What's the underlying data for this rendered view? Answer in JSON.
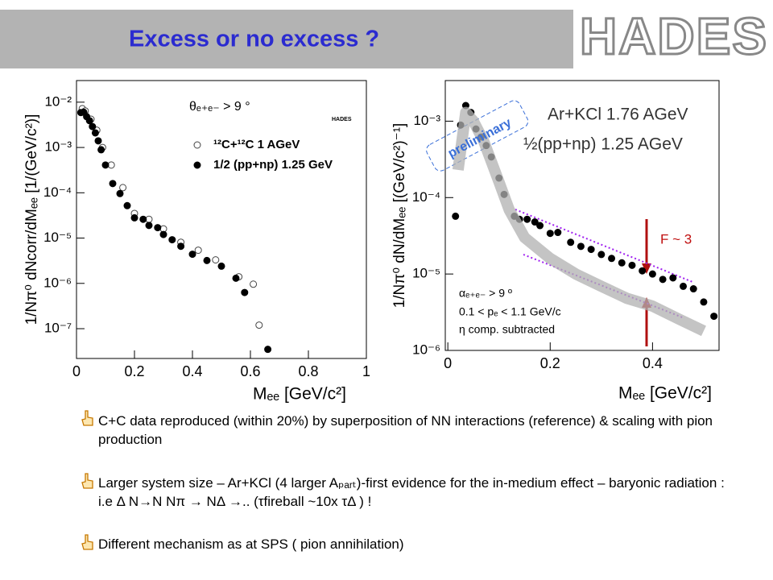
{
  "header": {
    "title": "Excess or no excess ?",
    "logo": "HADES"
  },
  "chart_data": [
    {
      "type": "scatter",
      "xlabel": "Mₑₑ [GeV/c²]",
      "ylabel": "1/Nπ⁰ dNcorr/dMₑₑ [1/(GeV/c²)]",
      "log_y": true,
      "xlim": [
        0,
        1
      ],
      "ylim": [
        2.2e-08,
        0.03
      ],
      "xticks": [
        0,
        0.2,
        0.4,
        0.6,
        0.8,
        1
      ],
      "yticks": [
        {
          "value": 1e-07,
          "label": "10⁻⁷"
        },
        {
          "value": 1e-06,
          "label": "10⁻⁶"
        },
        {
          "value": 1e-05,
          "label": "10⁻⁵"
        },
        {
          "value": 0.0001,
          "label": "10⁻⁴"
        },
        {
          "value": 0.001,
          "label": "10⁻³"
        },
        {
          "value": 0.01,
          "label": "10⁻²"
        }
      ],
      "annotations": [
        "θₑ₊ₑ₋ > 9 °",
        "HADES"
      ],
      "series": [
        {
          "name": "¹²C+¹²C 1 AGeV",
          "color": "#444444",
          "marker": "open-circle",
          "x": [
            0.02,
            0.03,
            0.05,
            0.07,
            0.09,
            0.12,
            0.16,
            0.2,
            0.25,
            0.3,
            0.36,
            0.42,
            0.48,
            0.56,
            0.61,
            0.63
          ],
          "values": [
            0.0072,
            0.0064,
            0.0042,
            0.0024,
            0.001,
            0.00041,
            0.00013,
            3.5e-05,
            2.6e-05,
            1.6e-05,
            8.1e-06,
            5.4e-06,
            3.3e-06,
            1.4e-06,
            9.6e-07,
            1.2e-07
          ]
        },
        {
          "name": "1/2 (pp+np) 1.25 GeV",
          "color": "#000000",
          "marker": "filled-circle",
          "x": [
            0.015,
            0.025,
            0.035,
            0.045,
            0.055,
            0.065,
            0.075,
            0.085,
            0.1,
            0.125,
            0.15,
            0.175,
            0.2,
            0.23,
            0.25,
            0.28,
            0.3,
            0.33,
            0.36,
            0.4,
            0.45,
            0.5,
            0.55,
            0.58,
            0.66
          ],
          "values": [
            0.0059,
            0.006,
            0.0048,
            0.0039,
            0.0029,
            0.0021,
            0.0014,
            0.00089,
            0.00041,
            0.00016,
            9.6e-05,
            5.2e-05,
            2.8e-05,
            2.6e-05,
            1.9e-05,
            1.7e-05,
            1.2e-05,
            9.2e-06,
            6.6e-06,
            4.4e-06,
            3.2e-06,
            2.4e-06,
            1.3e-06,
            6.3e-07,
            3.5e-08
          ]
        }
      ]
    },
    {
      "type": "scatter",
      "xlabel": "Mₑₑ [GeV/c²]",
      "ylabel": "1/Nπ⁰ dN/dMₑₑ [(GeV/c²)⁻¹]",
      "log_y": true,
      "xlim": [
        -0.005,
        0.53
      ],
      "ylim": [
        1e-06,
        0.0034
      ],
      "xticks": [
        0,
        0.2,
        0.4
      ],
      "yticks": [
        {
          "value": 1e-06,
          "label": "10⁻⁶"
        },
        {
          "value": 1e-05,
          "label": "10⁻⁵"
        },
        {
          "value": 0.0001,
          "label": "10⁻⁴"
        },
        {
          "value": 0.001,
          "label": "10⁻³"
        }
      ],
      "annotations": [
        "preliminary",
        "F ~ 3",
        "αₑ₊ₑ₋ > 9 º",
        "0.1 < pₑ < 1.1 GeV/c",
        "η comp. subtracted"
      ],
      "series": [
        {
          "name": "Ar+KCl 1.76 AGeV",
          "color": "#000000",
          "marker": "filled-circle",
          "x": [
            0.015,
            0.025,
            0.035,
            0.045,
            0.055,
            0.065,
            0.075,
            0.085,
            0.1,
            0.11,
            0.13,
            0.14,
            0.155,
            0.17,
            0.18,
            0.2,
            0.215,
            0.24,
            0.26,
            0.28,
            0.3,
            0.32,
            0.34,
            0.36,
            0.38,
            0.4,
            0.42,
            0.44,
            0.46,
            0.48,
            0.5,
            0.52
          ],
          "values": [
            5.7e-05,
            0.00089,
            0.0016,
            0.0013,
            0.00079,
            0.00062,
            0.00048,
            0.00034,
            0.00018,
            0.00011,
            5.7e-05,
            5.2e-05,
            5.2e-05,
            4.8e-05,
            4.3e-05,
            3.4e-05,
            3.5e-05,
            2.6e-05,
            2.3e-05,
            2.1e-05,
            1.8e-05,
            1.6e-05,
            1.4e-05,
            1.3e-05,
            1.1e-05,
            1e-05,
            8.5e-06,
            8.9e-06,
            6.9e-06,
            6.4e-06,
            4.3e-06,
            2.8e-06
          ]
        },
        {
          "name": "½(pp+np) 1.25 AGeV",
          "color": "#b0b0b0",
          "marker": "band",
          "x": [
            0.02,
            0.035,
            0.05,
            0.07,
            0.1,
            0.12,
            0.15,
            0.2,
            0.25,
            0.3,
            0.35,
            0.4,
            0.45,
            0.5
          ],
          "values": [
            0.00023,
            0.0013,
            0.001,
            0.00055,
            0.00016,
            6.9e-05,
            3e-05,
            1.6e-05,
            1e-05,
            6.9e-06,
            4.8e-06,
            3.8e-06,
            2.6e-06,
            1.8e-06
          ]
        }
      ]
    }
  ],
  "bullets": [
    "C+C data reproduced (within 20%) by superposition of NN interactions (reference) & scaling with pion production",
    "Larger system size – Ar+KCl (4 larger Aₚₐᵣₜ)-first evidence for the in-medium effect – baryonic radiation : i.e Δ N→N Nπ → NΔ →..  (τfireball ~10x τΔ )  !",
    "Different mechanism as at SPS ( pion annihilation)"
  ]
}
